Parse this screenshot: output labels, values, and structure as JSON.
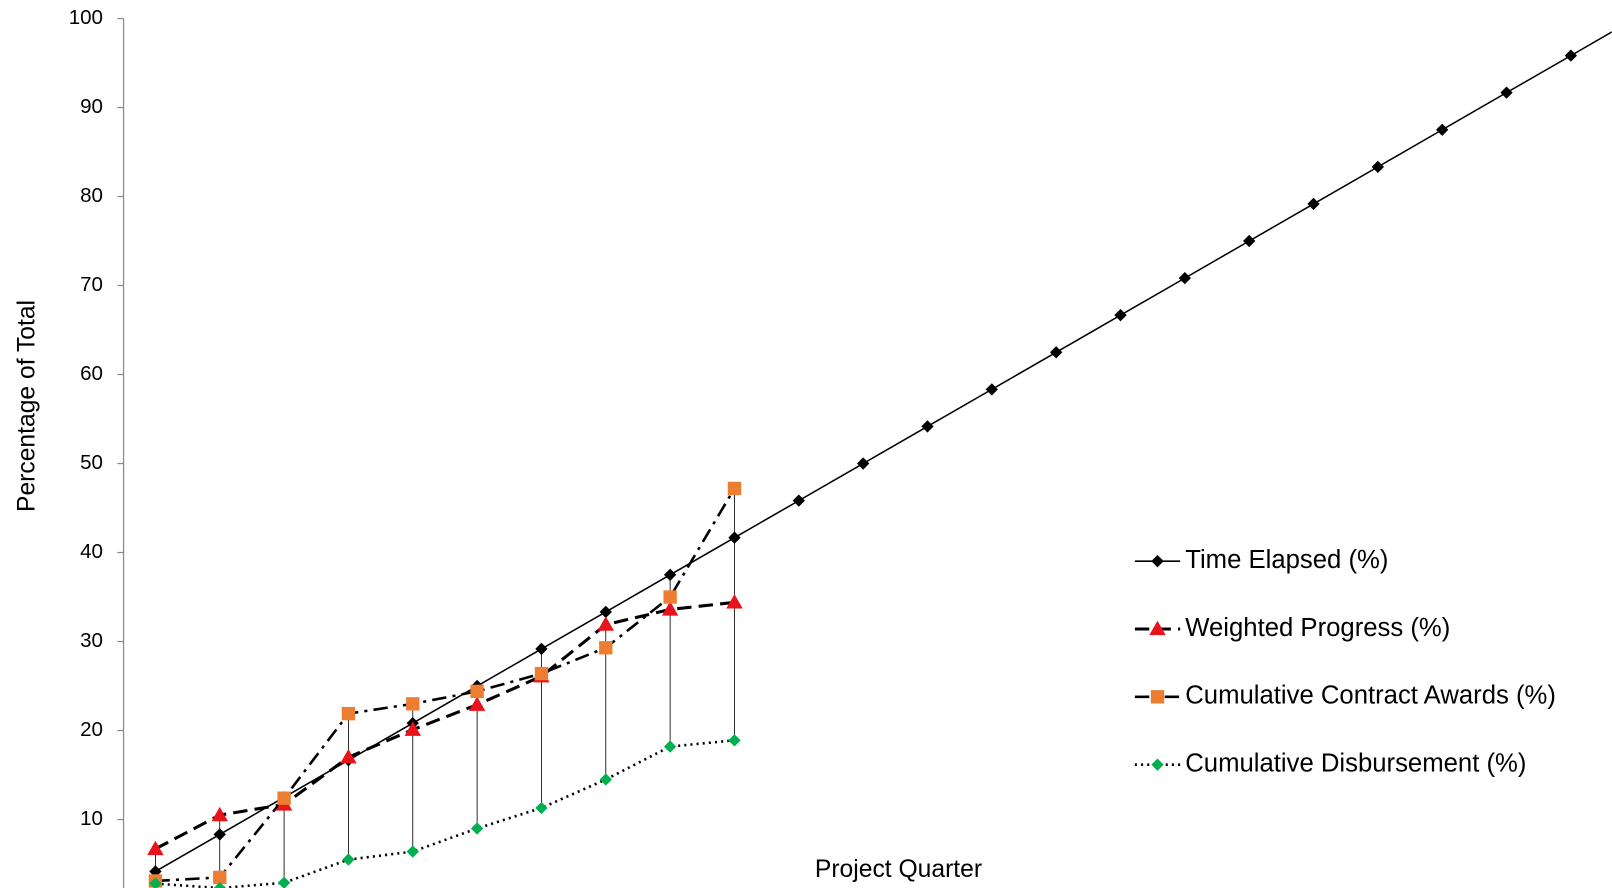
{
  "chart_data": {
    "type": "line",
    "y_label": "Percentage of Total",
    "x_label": "Project Quarter",
    "categories": [
      null,
      null,
      null,
      null,
      null,
      null,
      null,
      null,
      null,
      null,
      null,
      null,
      null,
      null,
      null,
      null,
      null,
      null,
      null,
      null,
      null,
      null,
      null,
      null
    ],
    "ylim": [
      0,
      100
    ],
    "yticks": [
      10,
      20,
      30,
      40,
      50,
      60,
      70,
      80,
      90,
      100
    ],
    "legend": "right",
    "series": [
      {
        "name": "Time Elapsed (%)",
        "color": "#000000",
        "marker_color": "#000000",
        "marker": "diamond",
        "line": "solid",
        "values": [
          4.17,
          8.33,
          12.5,
          16.67,
          20.83,
          25,
          29.17,
          33.33,
          37.5,
          41.67,
          45.83,
          50,
          54.17,
          58.33,
          62.5,
          66.67,
          70.83,
          75,
          79.17,
          83.33,
          87.5,
          91.67,
          95.83,
          100
        ]
      },
      {
        "name": "Weighted Progress (%)",
        "color": "#000000",
        "marker_color": "#e8131b",
        "marker": "triangle",
        "line": "dashed",
        "values": [
          6.7,
          10.5,
          11.7,
          17,
          20.1,
          22.9,
          26.1,
          31.9,
          33.6,
          34.4,
          null,
          null,
          null,
          null,
          null,
          null,
          null,
          null,
          null,
          null,
          null,
          null,
          null,
          null
        ]
      },
      {
        "name": "Cumulative Contract Awards (%)",
        "color": "#000000",
        "marker_color": "#ed7d31",
        "marker": "square",
        "line": "dashdot",
        "values": [
          3.1,
          3.5,
          12.4,
          21.9,
          23,
          24.4,
          26.4,
          29.3,
          35,
          47.2,
          null,
          null,
          null,
          null,
          null,
          null,
          null,
          null,
          null,
          null,
          null,
          null,
          null,
          null
        ]
      },
      {
        "name": "Cumulative Disbursement (%)",
        "color": "#000000",
        "marker_color": "#00b050",
        "marker": "diamond",
        "line": "dotted",
        "values": [
          2.8,
          2.3,
          2.9,
          5.5,
          6.4,
          9,
          11.3,
          14.5,
          18.2,
          18.9,
          null,
          null,
          null,
          null,
          null,
          null,
          null,
          null,
          null,
          null,
          null,
          null,
          null,
          null
        ]
      }
    ]
  }
}
